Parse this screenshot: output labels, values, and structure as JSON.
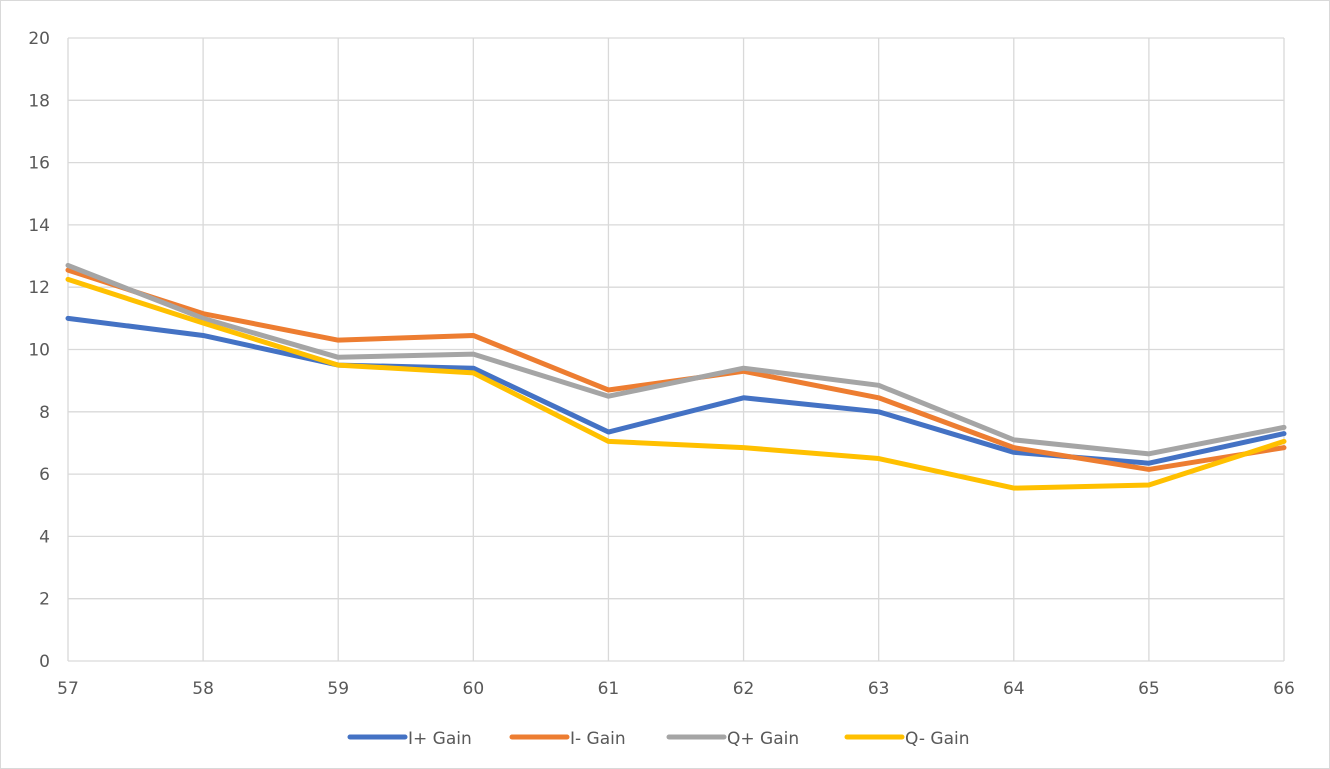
{
  "chart_data": {
    "type": "line",
    "title": "",
    "xlabel": "",
    "ylabel": "",
    "x": [
      57,
      58,
      59,
      60,
      61,
      62,
      63,
      64,
      65,
      66
    ],
    "x_tick_labels": [
      "57",
      "58",
      "59",
      "60",
      "61",
      "62",
      "63",
      "64",
      "65",
      "66"
    ],
    "y_tick_labels": [
      "0",
      "2",
      "4",
      "6",
      "8",
      "10",
      "12",
      "14",
      "16",
      "18",
      "20"
    ],
    "ylim": [
      0,
      20
    ],
    "xlim": [
      57,
      66
    ],
    "grid": true,
    "legend_position": "bottom",
    "series": [
      {
        "name": "I+ Gain",
        "color": "#4472c4",
        "values": [
          11.0,
          10.45,
          9.5,
          9.4,
          7.35,
          8.45,
          8.0,
          6.7,
          6.35,
          7.3
        ]
      },
      {
        "name": "I- Gain",
        "color": "#ed7d31",
        "values": [
          12.55,
          11.15,
          10.3,
          10.45,
          8.7,
          9.3,
          8.45,
          6.85,
          6.15,
          6.85
        ]
      },
      {
        "name": "Q+ Gain",
        "color": "#a5a5a5",
        "values": [
          12.7,
          11.0,
          9.75,
          9.85,
          8.5,
          9.4,
          8.85,
          7.1,
          6.65,
          7.5
        ]
      },
      {
        "name": "Q- Gain",
        "color": "#ffc000",
        "values": [
          12.25,
          10.85,
          9.5,
          9.25,
          7.05,
          6.85,
          6.5,
          5.55,
          5.65,
          7.05
        ]
      }
    ]
  }
}
